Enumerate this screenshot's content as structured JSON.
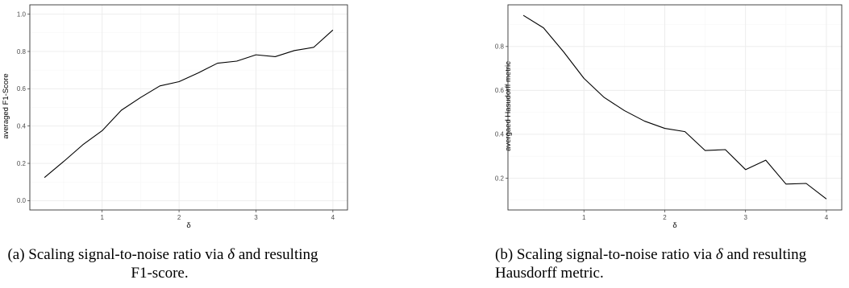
{
  "chart_data": [
    {
      "type": "line",
      "x": [
        0.25,
        0.5,
        0.75,
        1.0,
        1.25,
        1.5,
        1.75,
        2.0,
        2.25,
        2.5,
        2.75,
        3.0,
        3.25,
        3.5,
        3.75,
        4.0
      ],
      "series": [
        {
          "values": [
            0.124,
            0.21,
            0.3,
            0.375,
            0.485,
            0.553,
            0.615,
            0.638,
            0.685,
            0.737,
            0.748,
            0.782,
            0.772,
            0.805,
            0.822,
            0.915
          ]
        }
      ],
      "xlabel": "δ",
      "ylabel": "averaged F1-Score",
      "xlim": [
        0.06,
        4.19
      ],
      "ylim": [
        -0.05,
        1.05
      ],
      "xticks": [
        "1",
        "2",
        "3",
        "4"
      ],
      "yticks": [
        "0.0",
        "0.2",
        "0.4",
        "0.6",
        "0.8",
        "1.0"
      ],
      "grid": true,
      "caption": {
        "line1_prefix": "(a) Scaling signal-to-noise ratio via ",
        "symbol": "δ",
        "line1_suffix": " and resulting",
        "line2": "F1-score."
      }
    },
    {
      "type": "line",
      "x": [
        0.25,
        0.5,
        0.75,
        1.0,
        1.25,
        1.5,
        1.75,
        2.0,
        2.25,
        2.5,
        2.75,
        3.0,
        3.25,
        3.5,
        3.75,
        4.0
      ],
      "series": [
        {
          "values": [
            0.942,
            0.885,
            0.775,
            0.655,
            0.568,
            0.508,
            0.46,
            0.427,
            0.412,
            0.326,
            0.33,
            0.239,
            0.282,
            0.173,
            0.176,
            0.105
          ]
        }
      ],
      "xlabel": "δ",
      "ylabel": "avergaed Hasudorff metric",
      "xlim": [
        0.06,
        4.19
      ],
      "ylim": [
        0.055,
        0.99
      ],
      "xticks": [
        "1",
        "2",
        "3",
        "4"
      ],
      "yticks": [
        "0.0",
        "0.2",
        "0.4",
        "0.6",
        "0.8",
        "1.0"
      ],
      "grid": true,
      "caption": {
        "line1_prefix": "(b) Scaling signal-to-noise ratio via ",
        "symbol": "δ",
        "line1_suffix": " and resulting",
        "line2": "Hausdorff metric."
      }
    }
  ],
  "colors": {
    "line": "#000000",
    "panel_border": "#333333",
    "grid_major": "#ebebeb",
    "grid_minor": "#f5f5f5",
    "tick_text": "#4d4d4d"
  }
}
